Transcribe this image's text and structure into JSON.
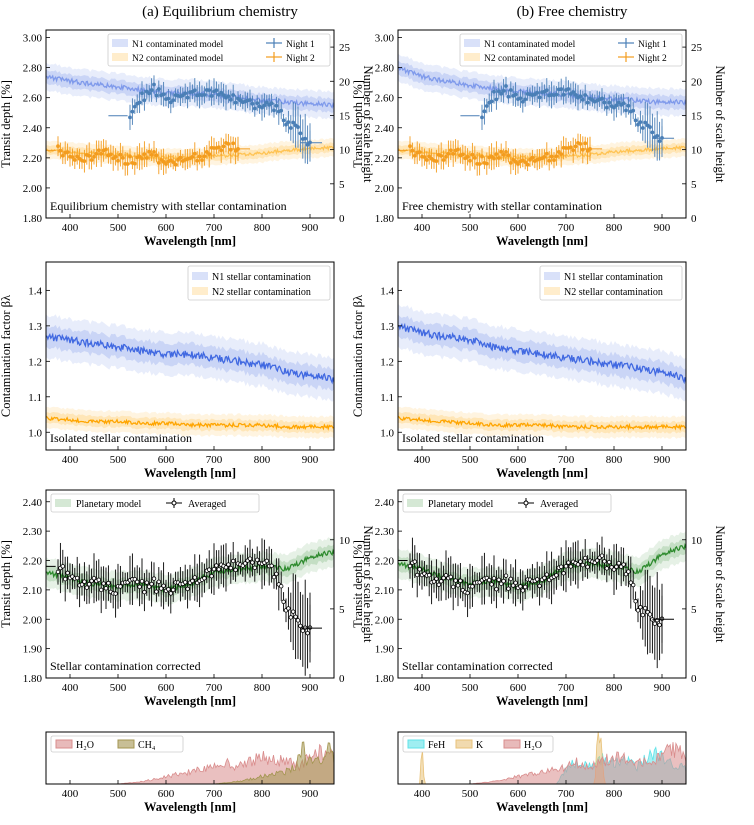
{
  "headers": {
    "left": "(a) Equilibrium chemistry",
    "right": "(b) Free chemistry"
  },
  "labels": {
    "wavelength": "Wavelength [nm]",
    "transit_depth": "Transit depth [%]",
    "scale_height": "Number of scale height",
    "contam_factor": "Contamination factor βλ"
  },
  "colors": {
    "night1": "#4a7fb6",
    "night2": "#f39c1e",
    "n1_model": "#4169e1",
    "n2_model": "#ffa500",
    "planet_model": "#2e8b2e",
    "h2o": "#d98c8c",
    "ch4": "#a39550",
    "feh": "#5fe3e8",
    "k": "#e8c27a"
  },
  "chart_data": [
    {
      "id": "a1",
      "type": "line",
      "annotation": "Equilibrium chemistry with stellar contamination",
      "xlim": [
        350,
        950
      ],
      "ylim": [
        1.8,
        3.05
      ],
      "ylim_right": [
        0,
        27.5
      ],
      "xticks": [
        400,
        500,
        600,
        700,
        800,
        900
      ],
      "yticks": [
        "1.80",
        "2.00",
        "2.20",
        "2.40",
        "2.60",
        "2.80",
        "3.00"
      ],
      "yticks_right": [
        0,
        5,
        10,
        15,
        20,
        25
      ],
      "legend": [
        "N1 contaminated model",
        "N2 contaminated model",
        "Night 1",
        "Night 2"
      ],
      "series": [
        {
          "name": "N1 contaminated model",
          "x": [
            350,
            400,
            450,
            500,
            550,
            600,
            650,
            700,
            750,
            800,
            850,
            900,
            950
          ],
          "y": [
            2.74,
            2.71,
            2.69,
            2.67,
            2.65,
            2.63,
            2.63,
            2.62,
            2.6,
            2.58,
            2.57,
            2.56,
            2.55
          ]
        },
        {
          "name": "N2 contaminated model",
          "x": [
            350,
            400,
            450,
            500,
            550,
            600,
            650,
            700,
            750,
            800,
            850,
            900,
            950
          ],
          "y": [
            2.25,
            2.24,
            2.23,
            2.22,
            2.21,
            2.2,
            2.2,
            2.21,
            2.22,
            2.23,
            2.25,
            2.26,
            2.27
          ]
        },
        {
          "name": "Night 1",
          "x": [
            525,
            550,
            575,
            600,
            625,
            650,
            675,
            700,
            725,
            750,
            775,
            800,
            825,
            850,
            875,
            900
          ],
          "y": [
            2.48,
            2.6,
            2.66,
            2.58,
            2.59,
            2.63,
            2.61,
            2.64,
            2.62,
            2.58,
            2.56,
            2.55,
            2.54,
            2.45,
            2.38,
            2.3
          ]
        },
        {
          "name": "Night 2",
          "x": [
            375,
            400,
            425,
            450,
            475,
            500,
            525,
            550,
            575,
            600,
            625,
            650,
            675,
            700,
            725,
            750
          ],
          "y": [
            2.25,
            2.2,
            2.19,
            2.22,
            2.24,
            2.2,
            2.18,
            2.2,
            2.22,
            2.16,
            2.18,
            2.2,
            2.21,
            2.25,
            2.28,
            2.26
          ]
        }
      ]
    },
    {
      "id": "b1",
      "type": "line",
      "annotation": "Free chemistry with stellar contamination",
      "xlim": [
        350,
        950
      ],
      "ylim": [
        1.8,
        3.05
      ],
      "ylim_right": [
        0,
        27.5
      ],
      "xticks": [
        400,
        500,
        600,
        700,
        800,
        900
      ],
      "yticks": [
        "1.80",
        "2.00",
        "2.20",
        "2.40",
        "2.60",
        "2.80",
        "3.00"
      ],
      "yticks_right": [
        0,
        5,
        10,
        15,
        20,
        25
      ],
      "legend": [
        "N1 contaminated model",
        "N2 contaminated model",
        "Night 1",
        "Night 2"
      ],
      "series": [
        {
          "name": "N1 contaminated model",
          "x": [
            350,
            400,
            450,
            500,
            550,
            600,
            650,
            700,
            750,
            800,
            850,
            900,
            950
          ],
          "y": [
            2.8,
            2.74,
            2.71,
            2.68,
            2.66,
            2.64,
            2.63,
            2.62,
            2.6,
            2.59,
            2.58,
            2.57,
            2.57
          ]
        },
        {
          "name": "N2 contaminated model",
          "x": [
            350,
            400,
            450,
            500,
            550,
            600,
            650,
            700,
            750,
            800,
            850,
            900,
            950
          ],
          "y": [
            2.25,
            2.24,
            2.23,
            2.22,
            2.21,
            2.2,
            2.2,
            2.21,
            2.22,
            2.24,
            2.25,
            2.26,
            2.27
          ]
        },
        {
          "name": "Night 1",
          "x": [
            525,
            550,
            575,
            600,
            625,
            650,
            675,
            700,
            725,
            750,
            775,
            800,
            825,
            850,
            875,
            900
          ],
          "y": [
            2.48,
            2.61,
            2.65,
            2.58,
            2.6,
            2.63,
            2.61,
            2.65,
            2.62,
            2.58,
            2.57,
            2.55,
            2.54,
            2.45,
            2.38,
            2.33
          ]
        },
        {
          "name": "Night 2",
          "x": [
            375,
            400,
            425,
            450,
            475,
            500,
            525,
            550,
            575,
            600,
            625,
            650,
            675,
            700,
            725,
            750
          ],
          "y": [
            2.25,
            2.2,
            2.19,
            2.22,
            2.24,
            2.2,
            2.18,
            2.2,
            2.22,
            2.16,
            2.18,
            2.2,
            2.21,
            2.25,
            2.28,
            2.26
          ]
        }
      ]
    },
    {
      "id": "a2",
      "type": "line",
      "annotation": "Isolated stellar contamination",
      "xlim": [
        350,
        950
      ],
      "ylim": [
        0.95,
        1.48
      ],
      "xticks": [
        400,
        500,
        600,
        700,
        800,
        900
      ],
      "yticks": [
        "1.0",
        "1.1",
        "1.2",
        "1.3",
        "1.4"
      ],
      "legend": [
        "N1 stellar contamination",
        "N2 stellar contamination"
      ],
      "series": [
        {
          "name": "N1 stellar contamination",
          "x": [
            350,
            400,
            450,
            500,
            550,
            600,
            650,
            700,
            750,
            800,
            850,
            900,
            950
          ],
          "y": [
            1.27,
            1.26,
            1.25,
            1.24,
            1.23,
            1.22,
            1.22,
            1.21,
            1.2,
            1.19,
            1.17,
            1.16,
            1.15
          ]
        },
        {
          "name": "N2 stellar contamination",
          "x": [
            350,
            400,
            450,
            500,
            550,
            600,
            650,
            700,
            750,
            800,
            850,
            900,
            950
          ],
          "y": [
            1.04,
            1.035,
            1.03,
            1.03,
            1.025,
            1.025,
            1.02,
            1.02,
            1.02,
            1.02,
            1.015,
            1.015,
            1.015
          ]
        }
      ]
    },
    {
      "id": "b2",
      "type": "line",
      "annotation": "Isolated stellar contamination",
      "xlim": [
        350,
        950
      ],
      "ylim": [
        0.95,
        1.48
      ],
      "xticks": [
        400,
        500,
        600,
        700,
        800,
        900
      ],
      "yticks": [
        "1.0",
        "1.1",
        "1.2",
        "1.3",
        "1.4"
      ],
      "legend": [
        "N1 stellar contamination",
        "N2 stellar contamination"
      ],
      "series": [
        {
          "name": "N1 stellar contamination",
          "x": [
            350,
            400,
            450,
            500,
            550,
            600,
            650,
            700,
            750,
            800,
            850,
            900,
            950
          ],
          "y": [
            1.3,
            1.28,
            1.27,
            1.26,
            1.24,
            1.23,
            1.22,
            1.21,
            1.2,
            1.19,
            1.18,
            1.17,
            1.15
          ]
        },
        {
          "name": "N2 stellar contamination",
          "x": [
            350,
            400,
            450,
            500,
            550,
            600,
            650,
            700,
            750,
            800,
            850,
            900,
            950
          ],
          "y": [
            1.04,
            1.035,
            1.03,
            1.025,
            1.02,
            1.02,
            1.02,
            1.015,
            1.015,
            1.015,
            1.015,
            1.015,
            1.015
          ]
        }
      ]
    },
    {
      "id": "a3",
      "type": "line",
      "annotation": "Stellar contamination corrected",
      "xlim": [
        350,
        950
      ],
      "ylim": [
        1.8,
        2.44
      ],
      "ylim_right": [
        0,
        13.6
      ],
      "xticks": [
        400,
        500,
        600,
        700,
        800,
        900
      ],
      "yticks": [
        "1.80",
        "1.90",
        "2.00",
        "2.10",
        "2.20",
        "2.30",
        "2.40"
      ],
      "yticks_right": [
        0,
        5,
        10
      ],
      "legend": [
        "Planetary model",
        "Averaged"
      ],
      "series": [
        {
          "name": "Planetary model",
          "x": [
            350,
            400,
            450,
            500,
            550,
            600,
            650,
            700,
            750,
            800,
            850,
            900,
            950
          ],
          "y": [
            2.16,
            2.14,
            2.12,
            2.11,
            2.12,
            2.1,
            2.12,
            2.16,
            2.17,
            2.18,
            2.17,
            2.21,
            2.23
          ]
        },
        {
          "name": "Averaged",
          "x": [
            375,
            400,
            425,
            450,
            475,
            500,
            525,
            550,
            575,
            600,
            625,
            650,
            675,
            700,
            725,
            750,
            775,
            800,
            825,
            850,
            875,
            900
          ],
          "y": [
            2.18,
            2.14,
            2.12,
            2.13,
            2.11,
            2.1,
            2.14,
            2.11,
            2.12,
            2.09,
            2.11,
            2.12,
            2.13,
            2.17,
            2.19,
            2.18,
            2.19,
            2.2,
            2.16,
            2.05,
            1.98,
            1.97
          ]
        }
      ]
    },
    {
      "id": "b3",
      "type": "line",
      "annotation": "Stellar contamination corrected",
      "xlim": [
        350,
        950
      ],
      "ylim": [
        1.8,
        2.44
      ],
      "ylim_right": [
        0,
        13.6
      ],
      "xticks": [
        400,
        500,
        600,
        700,
        800,
        900
      ],
      "yticks": [
        "1.80",
        "1.90",
        "2.00",
        "2.10",
        "2.20",
        "2.30",
        "2.40"
      ],
      "yticks_right": [
        0,
        5,
        10
      ],
      "legend": [
        "Planetary model",
        "Averaged"
      ],
      "series": [
        {
          "name": "Planetary model",
          "x": [
            350,
            400,
            450,
            500,
            550,
            600,
            650,
            700,
            750,
            800,
            850,
            900,
            950
          ],
          "y": [
            2.19,
            2.17,
            2.14,
            2.12,
            2.13,
            2.11,
            2.13,
            2.18,
            2.19,
            2.18,
            2.16,
            2.22,
            2.25
          ]
        },
        {
          "name": "Averaged",
          "x": [
            375,
            400,
            425,
            450,
            475,
            500,
            525,
            550,
            575,
            600,
            625,
            650,
            675,
            700,
            725,
            750,
            775,
            800,
            825,
            850,
            875,
            900
          ],
          "y": [
            2.2,
            2.15,
            2.13,
            2.14,
            2.12,
            2.1,
            2.14,
            2.12,
            2.13,
            2.1,
            2.12,
            2.13,
            2.14,
            2.18,
            2.2,
            2.19,
            2.2,
            2.18,
            2.17,
            2.05,
            2.0,
            2.0
          ]
        }
      ]
    },
    {
      "id": "a4",
      "type": "area",
      "xlim": [
        350,
        950
      ],
      "ylim": [
        0,
        1
      ],
      "xticks": [
        400,
        500,
        600,
        700,
        800,
        900
      ],
      "legend": [
        "H₂O",
        "CH₄"
      ],
      "series": [
        {
          "name": "H₂O",
          "x": [
            350,
            500,
            550,
            600,
            650,
            700,
            720,
            750,
            800,
            850,
            880,
            900,
            920,
            950
          ],
          "y": [
            0,
            0,
            0.05,
            0.15,
            0.25,
            0.35,
            0.45,
            0.35,
            0.55,
            0.45,
            0.35,
            0.6,
            0.7,
            0.55
          ]
        },
        {
          "name": "CH₄",
          "x": [
            350,
            700,
            750,
            800,
            850,
            870,
            885,
            895,
            905,
            920,
            935,
            950
          ],
          "y": [
            0,
            0,
            0.05,
            0.15,
            0.25,
            0.35,
            0.75,
            0.4,
            0.5,
            0.45,
            0.8,
            0.5
          ]
        }
      ]
    },
    {
      "id": "b4",
      "type": "area",
      "xlim": [
        350,
        950
      ],
      "ylim": [
        0,
        1
      ],
      "xticks": [
        400,
        500,
        600,
        700,
        800,
        900
      ],
      "legend": [
        "FeH",
        "K",
        "H₂O"
      ],
      "series": [
        {
          "name": "FeH",
          "x": [
            350,
            680,
            700,
            720,
            750,
            780,
            800,
            820,
            850,
            870,
            890,
            910,
            930,
            950
          ],
          "y": [
            0,
            0,
            0.3,
            0.45,
            0.35,
            0.55,
            0.4,
            0.5,
            0.35,
            0.55,
            0.6,
            0.45,
            0.4,
            0.3
          ]
        },
        {
          "name": "K",
          "x": [
            350,
            395,
            400,
            405,
            760,
            765,
            770,
            775,
            780,
            950
          ],
          "y": [
            0,
            0,
            0.85,
            0,
            0,
            0.9,
            1.0,
            0.6,
            0,
            0
          ]
        },
        {
          "name": "H₂O",
          "x": [
            350,
            500,
            550,
            600,
            650,
            700,
            720,
            750,
            800,
            850,
            880,
            900,
            920,
            950
          ],
          "y": [
            0,
            0,
            0.05,
            0.15,
            0.25,
            0.35,
            0.45,
            0.35,
            0.55,
            0.45,
            0.4,
            0.6,
            0.7,
            0.6
          ]
        }
      ]
    }
  ]
}
